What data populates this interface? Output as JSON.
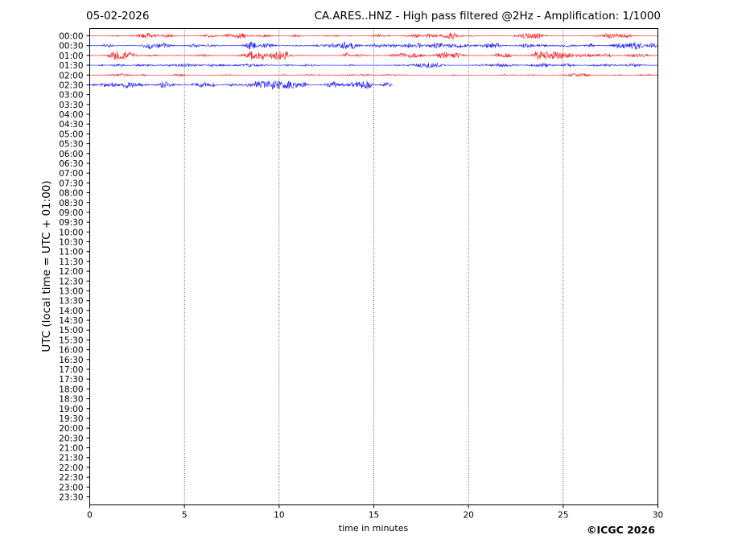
{
  "header": {
    "date": "05-02-2026",
    "title": "CA.ARES..HNZ - High pass filtered @2Hz - Amplification: 1/1000"
  },
  "footer": {
    "copyright": "©ICGC 2026"
  },
  "chart_data": {
    "type": "line",
    "subtype": "helicorder",
    "xlabel": "time in minutes",
    "ylabel": "UTC (local time = UTC + 01:00)",
    "xlim": [
      0,
      30
    ],
    "x_ticks": [
      "0",
      "5",
      "10",
      "15",
      "20",
      "25",
      "30"
    ],
    "x_tick_values": [
      0,
      5,
      10,
      15,
      20,
      25,
      30
    ],
    "vertical_grid": "dotted at x ticks",
    "row_labels": [
      "00:00",
      "00:30",
      "01:00",
      "01:30",
      "02:00",
      "02:30",
      "03:00",
      "03:30",
      "04:00",
      "04:30",
      "05:00",
      "05:30",
      "06:00",
      "06:30",
      "07:00",
      "07:30",
      "08:00",
      "08:30",
      "09:00",
      "09:30",
      "10:00",
      "10:30",
      "11:00",
      "11:30",
      "12:00",
      "12:30",
      "13:00",
      "13:30",
      "14:00",
      "14:30",
      "15:00",
      "15:30",
      "16:00",
      "16:30",
      "17:00",
      "17:30",
      "18:00",
      "18:30",
      "19:00",
      "19:30",
      "20:00",
      "20:30",
      "21:00",
      "21:30",
      "22:00",
      "22:30",
      "23:00",
      "23:30"
    ],
    "colors": [
      "#ff0000",
      "#0000ff"
    ],
    "traces": [
      {
        "row": "00:00",
        "color": "#ff0000",
        "end_minute": 30,
        "activity": 0.6
      },
      {
        "row": "00:30",
        "color": "#0000ff",
        "end_minute": 30,
        "activity": 1.0
      },
      {
        "row": "01:00",
        "color": "#ff0000",
        "end_minute": 30,
        "activity": 0.9
      },
      {
        "row": "01:30",
        "color": "#0000ff",
        "end_minute": 30,
        "activity": 0.5
      },
      {
        "row": "02:00",
        "color": "#ff0000",
        "end_minute": 30,
        "activity": 0.25
      },
      {
        "row": "02:30",
        "color": "#0000ff",
        "end_minute": 16,
        "activity": 0.7
      }
    ]
  }
}
